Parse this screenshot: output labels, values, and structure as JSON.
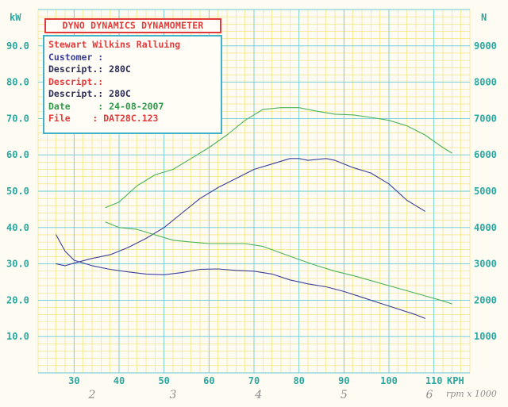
{
  "chart_data": {
    "type": "line",
    "title": "DYNO DYNAMICS DYNAMOMETER",
    "xlabel": "KPH",
    "ylabel_left": "kW",
    "ylabel_right": "N",
    "x_ticks": [
      "30",
      "40",
      "50",
      "60",
      "70",
      "80",
      "90",
      "100",
      "110"
    ],
    "y_left_ticks": [
      "10.0",
      "20.0",
      "30.0",
      "40.0",
      "50.0",
      "60.0",
      "70.0",
      "80.0",
      "90.0"
    ],
    "y_right_ticks": [
      "1000",
      "2000",
      "3000",
      "4000",
      "5000",
      "6000",
      "7000",
      "8000",
      "9000"
    ],
    "xlim": [
      22,
      118
    ],
    "ylim_left": [
      0,
      100
    ],
    "ylim_right": [
      0,
      10000
    ],
    "grid": true,
    "secondary_axis": {
      "label": "rpm x 1000",
      "ticks": [
        {
          "label": "2",
          "kph": 34
        },
        {
          "label": "3",
          "kph": 52
        },
        {
          "label": "4",
          "kph": 71
        },
        {
          "label": "5",
          "kph": 90
        },
        {
          "label": "6",
          "kph": 109
        }
      ]
    },
    "series": [
      {
        "axis": "left",
        "color": "#3a3f9c",
        "x": [
          26,
          28,
          30,
          34,
          38,
          42,
          46,
          50,
          54,
          58,
          62,
          66,
          70,
          74,
          78,
          80,
          82,
          86,
          88,
          92,
          96,
          100,
          104,
          108
        ],
        "y": [
          30,
          29.5,
          30.2,
          31.5,
          32.5,
          34.5,
          37,
          40,
          44,
          48,
          51,
          53.5,
          56,
          57.5,
          59,
          59,
          58.5,
          59,
          58.5,
          56.5,
          55,
          52,
          47.5,
          44.5
        ]
      },
      {
        "axis": "right",
        "color": "#3a3f9c",
        "x": [
          26,
          28,
          30,
          34,
          38,
          42,
          46,
          50,
          54,
          58,
          62,
          66,
          70,
          74,
          78,
          82,
          86,
          90,
          94,
          98,
          102,
          106,
          108
        ],
        "y": [
          3800,
          3350,
          3100,
          2950,
          2850,
          2780,
          2720,
          2700,
          2760,
          2850,
          2860,
          2820,
          2800,
          2720,
          2560,
          2450,
          2370,
          2240,
          2080,
          1920,
          1760,
          1600,
          1500
        ]
      },
      {
        "axis": "left",
        "color": "#4cb35a",
        "x": [
          37,
          40,
          44,
          48,
          52,
          56,
          60,
          64,
          68,
          72,
          76,
          80,
          84,
          88,
          92,
          96,
          100,
          104,
          108,
          112,
          114
        ],
        "y": [
          45.5,
          47,
          51.5,
          54.5,
          56,
          59,
          62,
          65.5,
          69.5,
          72.5,
          73,
          73,
          72,
          71.2,
          71,
          70.3,
          69.5,
          68,
          65.5,
          62,
          60.5
        ]
      },
      {
        "axis": "right",
        "color": "#4cb35a",
        "x": [
          37,
          40,
          44,
          48,
          52,
          56,
          60,
          64,
          68,
          72,
          76,
          80,
          84,
          88,
          92,
          96,
          100,
          104,
          108,
          112,
          114
        ],
        "y": [
          4150,
          4000,
          3950,
          3800,
          3650,
          3600,
          3560,
          3560,
          3560,
          3480,
          3300,
          3120,
          2950,
          2800,
          2680,
          2540,
          2400,
          2260,
          2120,
          1980,
          1900
        ]
      }
    ]
  },
  "header": {
    "title": "DYNO DYNAMICS DYNAMOMETER"
  },
  "info": {
    "company": "Stewart Wilkins Ralluing",
    "customer_label": "Customer :",
    "descript1": "Descript.: 280C",
    "descript2": "Descript.:",
    "descript3": "Descript.: 280C",
    "date": "Date     : 24-08-2007",
    "file": "File    : DAT28C.123"
  },
  "colors": {
    "grid_yellow": "#f3e070",
    "grid_cyan": "#6ccad2",
    "axis_text": "#2aa7a0",
    "power_blue": "#3a3f9c",
    "green_curve": "#4cb35a",
    "title_red": "#e23a3a"
  }
}
